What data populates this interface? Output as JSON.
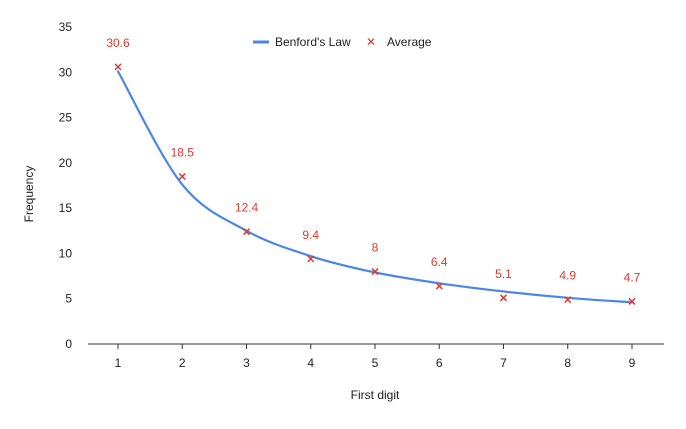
{
  "chart_data": {
    "type": "line",
    "title": "",
    "xlabel": "First digit",
    "ylabel": "Frequency",
    "xlim": [
      1,
      9
    ],
    "ylim": [
      0,
      35
    ],
    "x_ticks": [
      1,
      2,
      3,
      4,
      5,
      6,
      7,
      8,
      9
    ],
    "y_ticks": [
      0,
      5,
      10,
      15,
      20,
      25,
      30,
      35
    ],
    "grid": false,
    "legend_position": "top-center",
    "series": [
      {
        "name": "Benford's Law",
        "type": "line",
        "color": "#4a86e8",
        "x": [
          1,
          2,
          3,
          4,
          5,
          6,
          7,
          8,
          9
        ],
        "values": [
          30.1,
          17.6,
          12.5,
          9.7,
          7.9,
          6.7,
          5.8,
          5.1,
          4.6
        ]
      },
      {
        "name": "Average",
        "type": "scatter",
        "marker": "x",
        "color": "#e0392f",
        "x": [
          1,
          2,
          3,
          4,
          5,
          6,
          7,
          8,
          9
        ],
        "values": [
          30.6,
          18.5,
          12.4,
          9.4,
          8,
          6.4,
          5.1,
          4.9,
          4.7
        ],
        "data_labels": [
          "30.6",
          "18.5",
          "12.4",
          "9.4",
          "8",
          "6.4",
          "5.1",
          "4.9",
          "4.7"
        ]
      }
    ]
  }
}
